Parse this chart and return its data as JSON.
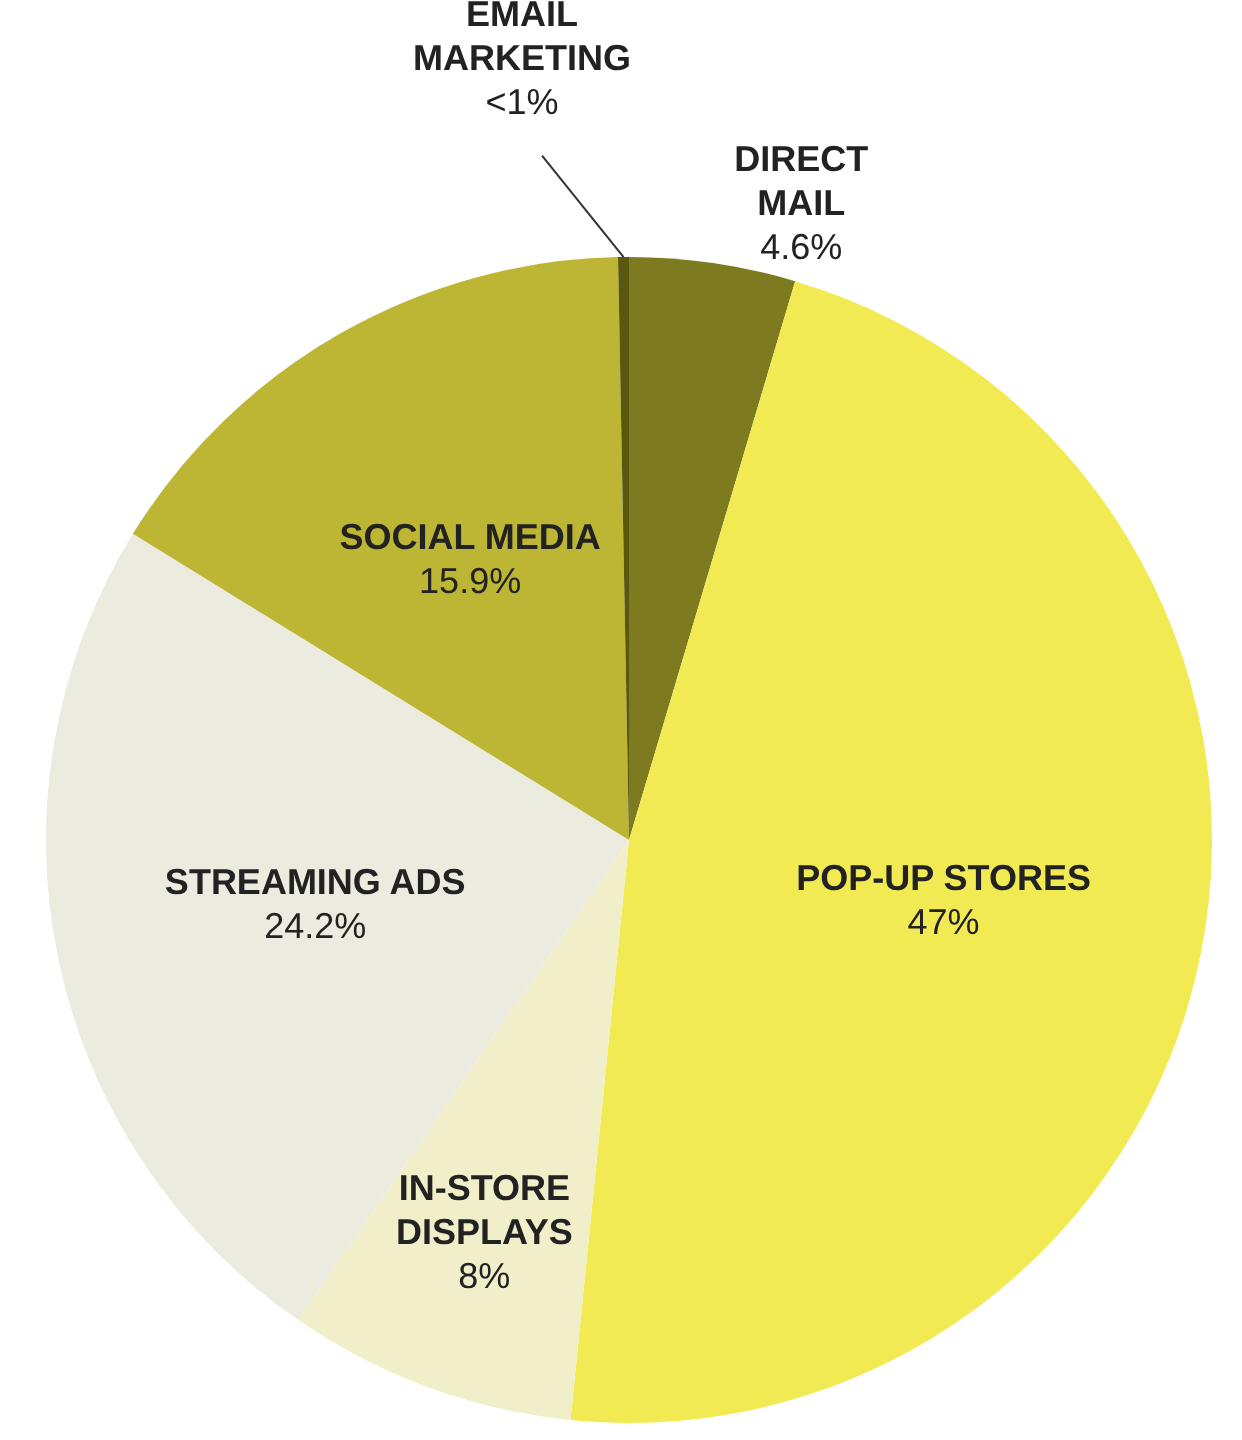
{
  "chart_data": {
    "type": "pie",
    "categories": [
      "DIRECT MAIL",
      "POP-UP STORES",
      "IN-STORE DISPLAYS",
      "STREAMING ADS",
      "SOCIAL MEDIA",
      "EMAIL MARKETING"
    ],
    "values": [
      4.6,
      47,
      8,
      24.2,
      15.9,
      0.3
    ],
    "value_labels": [
      "4.6%",
      "47%",
      "8%",
      "24.2%",
      "15.9%",
      "<1%"
    ],
    "colors": [
      "#7d7a1f",
      "#f2ea52",
      "#f1efc9",
      "#ecebdf",
      "#bdb534",
      "#5a580f"
    ],
    "legend": false
  }
}
